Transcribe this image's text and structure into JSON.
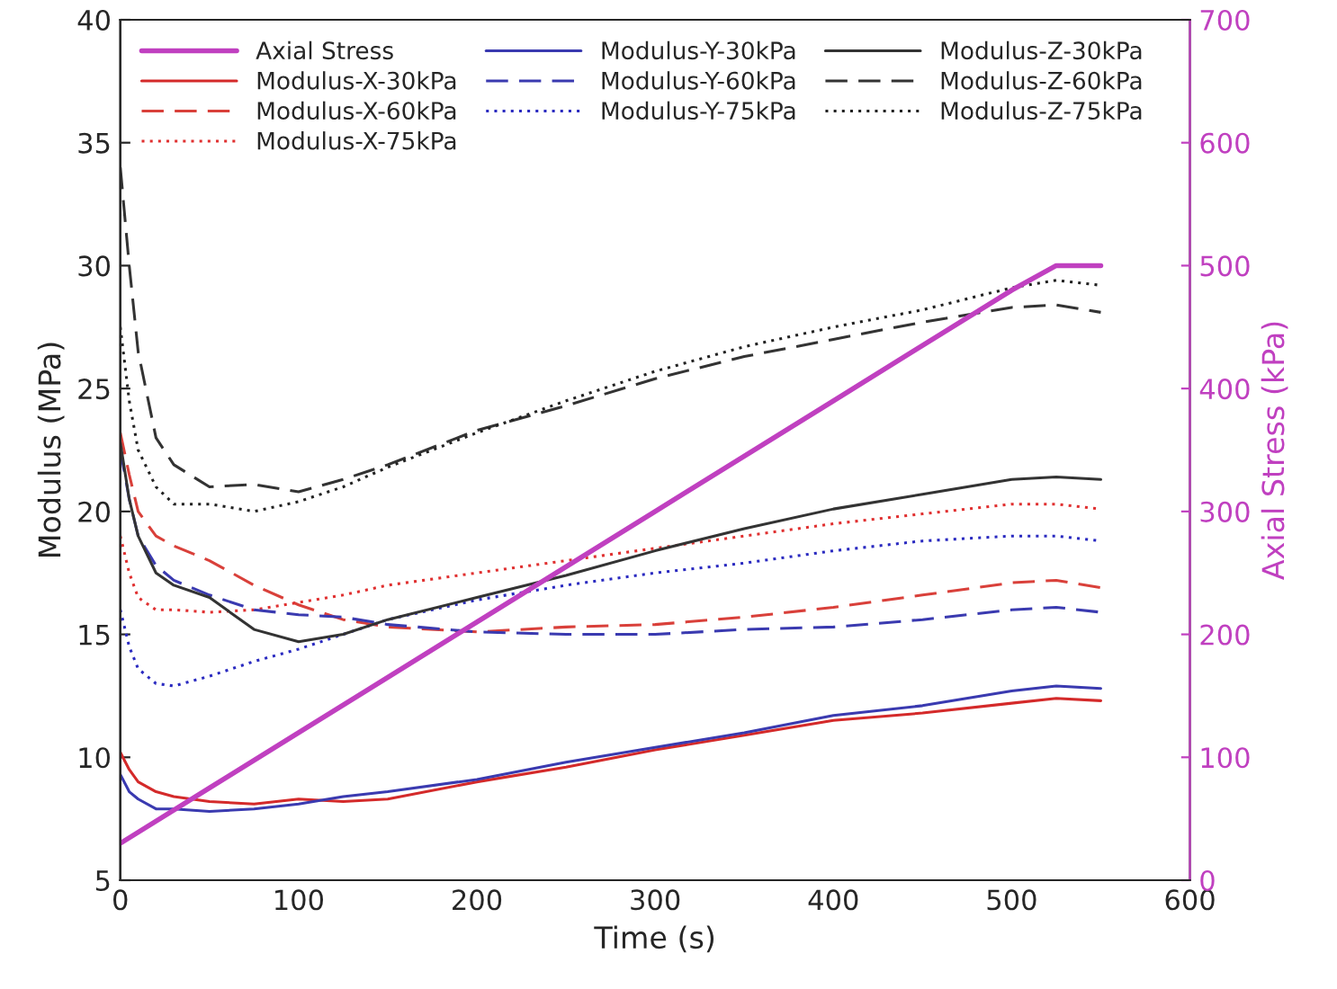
{
  "chart_data": {
    "type": "line",
    "xlabel": "Time (s)",
    "ylabel": "Modulus (MPa)",
    "y2label": "Axial Stress (kPa)",
    "xlim": [
      0,
      600
    ],
    "xticks": [
      0,
      100,
      200,
      300,
      400,
      500,
      600
    ],
    "ylim": [
      5,
      40
    ],
    "yticks": [
      5,
      10,
      15,
      20,
      25,
      30,
      35,
      40
    ],
    "y2lim": [
      0,
      700
    ],
    "y2ticks": [
      0,
      100,
      200,
      300,
      400,
      500,
      600,
      700
    ],
    "grid": false,
    "legend": "top left",
    "marker": "none",
    "x": [
      0,
      5,
      10,
      20,
      30,
      50,
      75,
      100,
      125,
      150,
      200,
      250,
      300,
      350,
      400,
      450,
      500,
      525,
      550
    ],
    "series": [
      {
        "name": "Axial Stress",
        "color": "#c040c0",
        "axis": "y2",
        "line_style": "solid",
        "x": [
          0,
          50,
          100,
          200,
          300,
          400,
          500,
          525,
          550
        ],
        "values": [
          30,
          75,
          120,
          210,
          300,
          390,
          480,
          500,
          500
        ]
      },
      {
        "name": "Modulus-X-30kPa",
        "color": "#d42a2a",
        "line_style": "solid",
        "values": [
          10.2,
          9.5,
          9.0,
          8.6,
          8.4,
          8.2,
          8.1,
          8.3,
          8.2,
          8.3,
          9.0,
          9.6,
          10.3,
          10.9,
          11.5,
          11.8,
          12.2,
          12.4,
          12.3
        ]
      },
      {
        "name": "Modulus-X-60kPa",
        "color": "#d9403a",
        "line_style": "dashed",
        "values": [
          23.2,
          21.5,
          20.0,
          19.0,
          18.6,
          18.0,
          17.0,
          16.2,
          15.6,
          15.3,
          15.1,
          15.3,
          15.4,
          15.7,
          16.1,
          16.6,
          17.1,
          17.2,
          16.9
        ]
      },
      {
        "name": "Modulus-X-75kPa",
        "color": "#e03030",
        "line_style": "dotted",
        "values": [
          19.0,
          17.5,
          16.5,
          16.0,
          16.0,
          15.9,
          16.0,
          16.3,
          16.6,
          17.0,
          17.5,
          18.0,
          18.5,
          19.0,
          19.5,
          19.9,
          20.3,
          20.3,
          20.1
        ]
      },
      {
        "name": "Modulus-Y-30kPa",
        "color": "#3a3ab0",
        "line_style": "solid",
        "values": [
          9.3,
          8.6,
          8.3,
          7.9,
          7.9,
          7.8,
          7.9,
          8.1,
          8.4,
          8.6,
          9.1,
          9.8,
          10.4,
          11.0,
          11.7,
          12.1,
          12.7,
          12.9,
          12.8
        ]
      },
      {
        "name": "Modulus-Y-60kPa",
        "color": "#3a3ab0",
        "line_style": "dashed",
        "values": [
          22.5,
          20.5,
          19.0,
          17.8,
          17.2,
          16.6,
          16.0,
          15.8,
          15.7,
          15.4,
          15.1,
          15.0,
          15.0,
          15.2,
          15.3,
          15.6,
          16.0,
          16.1,
          15.9
        ]
      },
      {
        "name": "Modulus-Y-75kPa",
        "color": "#2a2ac0",
        "line_style": "dotted",
        "values": [
          16.0,
          14.5,
          13.6,
          13.0,
          12.9,
          13.3,
          13.9,
          14.4,
          15.0,
          15.6,
          16.4,
          17.0,
          17.5,
          17.9,
          18.4,
          18.8,
          19.0,
          19.0,
          18.8
        ]
      },
      {
        "name": "Modulus-Z-30kPa",
        "color": "#333333",
        "line_style": "solid",
        "values": [
          22.8,
          20.5,
          19.0,
          17.5,
          17.0,
          16.5,
          15.2,
          14.7,
          15.0,
          15.6,
          16.5,
          17.4,
          18.4,
          19.3,
          20.1,
          20.7,
          21.3,
          21.4,
          21.3
        ]
      },
      {
        "name": "Modulus-Z-60kPa",
        "color": "#333333",
        "line_style": "dashed",
        "values": [
          34.0,
          30.0,
          26.5,
          23.0,
          21.9,
          21.0,
          21.1,
          20.8,
          21.3,
          21.9,
          23.3,
          24.3,
          25.4,
          26.3,
          27.0,
          27.7,
          28.3,
          28.4,
          28.1
        ]
      },
      {
        "name": "Modulus-Z-75kPa",
        "color": "#222222",
        "line_style": "dotted",
        "values": [
          27.5,
          24.5,
          22.5,
          21.0,
          20.3,
          20.3,
          20.0,
          20.4,
          21.0,
          21.8,
          23.2,
          24.5,
          25.7,
          26.7,
          27.5,
          28.2,
          29.1,
          29.4,
          29.2
        ]
      }
    ]
  }
}
